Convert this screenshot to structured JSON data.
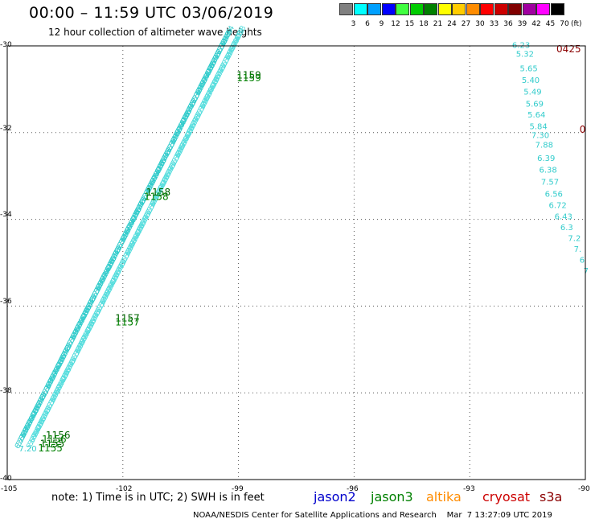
{
  "header": {
    "title": "00:00 – 11:59 UTC 03/06/2019",
    "subtitle": "12 hour collection of altimeter wave heights"
  },
  "legend_scale": {
    "unit": "(ft)",
    "items": [
      {
        "label": "3",
        "color": "#808080"
      },
      {
        "label": "6",
        "color": "#00ffff"
      },
      {
        "label": "9",
        "color": "#00a0ff"
      },
      {
        "label": "12",
        "color": "#0000ff"
      },
      {
        "label": "15",
        "color": "#40ff40"
      },
      {
        "label": "18",
        "color": "#00cc00"
      },
      {
        "label": "21",
        "color": "#008000"
      },
      {
        "label": "24",
        "color": "#ffff00"
      },
      {
        "label": "27",
        "color": "#ffcc00"
      },
      {
        "label": "30",
        "color": "#ff8c00"
      },
      {
        "label": "33",
        "color": "#ff0000"
      },
      {
        "label": "36",
        "color": "#cc0000"
      },
      {
        "label": "39",
        "color": "#800000"
      },
      {
        "label": "42",
        "color": "#a000a0"
      },
      {
        "label": "45",
        "color": "#ff00ff"
      },
      {
        "label": "70",
        "color": "#000000"
      }
    ]
  },
  "axes": {
    "lat_labels": [
      "-30",
      "-32",
      "-34",
      "-36",
      "-38",
      "-40"
    ],
    "lon_labels": [
      "-105",
      "-102",
      "-99",
      "-96",
      "-93",
      "-90"
    ]
  },
  "map": {
    "tracks": [
      {
        "color": "#33cccc",
        "lon_start": -104.7,
        "lat_start": -39.3,
        "lon_end": -99.3,
        "lat_end": -29.9
      },
      {
        "color": "#55dddd",
        "lon_start": -104.4,
        "lat_start": -39.3,
        "lon_end": -99.0,
        "lat_end": -29.9
      }
    ],
    "time_labels": [
      {
        "text": "1159",
        "lon": -99.05,
        "lat": -30.75,
        "color": "#006400"
      },
      {
        "text": "1159",
        "lon": -99.05,
        "lat": -30.82,
        "color": "#008000"
      },
      {
        "text": "1158",
        "lon": -101.4,
        "lat": -33.45,
        "color": "#006400"
      },
      {
        "text": "1158",
        "lon": -101.45,
        "lat": -33.55,
        "color": "#008000"
      },
      {
        "text": "1157",
        "lon": -102.2,
        "lat": -36.35,
        "color": "#006400"
      },
      {
        "text": "1157",
        "lon": -102.2,
        "lat": -36.45,
        "color": "#008000"
      },
      {
        "text": "1156",
        "lon": -104.0,
        "lat": -39.05,
        "color": "#006400"
      },
      {
        "text": "1156",
        "lon": -104.1,
        "lat": -39.15,
        "color": "#008000"
      },
      {
        "text": "1155",
        "lon": -104.15,
        "lat": -39.25,
        "color": "#006400"
      },
      {
        "text": "1155",
        "lon": -104.2,
        "lat": -39.35,
        "color": "#008000"
      }
    ],
    "track_value_samples": [
      "6.23",
      "5.32",
      "5.65",
      "5.40",
      "5.49",
      "5.69",
      "5.64",
      "5.84",
      "7.30",
      "7.88",
      "6.39",
      "6.38",
      "7.57",
      "6.56",
      "6.72",
      "6.43",
      "6.3",
      "7.2"
    ],
    "right_track": [
      {
        "text": "6.23",
        "lon": -91.9,
        "lat": -30.05
      },
      {
        "text": "5.32",
        "lon": -91.8,
        "lat": -30.25
      },
      {
        "text": "5.65",
        "lon": -91.7,
        "lat": -30.58
      },
      {
        "text": "5.40",
        "lon": -91.65,
        "lat": -30.85
      },
      {
        "text": "5.49",
        "lon": -91.6,
        "lat": -31.12
      },
      {
        "text": "5.69",
        "lon": -91.55,
        "lat": -31.4
      },
      {
        "text": "5.64",
        "lon": -91.5,
        "lat": -31.65
      },
      {
        "text": "5.84",
        "lon": -91.45,
        "lat": -31.92
      },
      {
        "text": "7.30",
        "lon": -91.4,
        "lat": -32.12
      },
      {
        "text": "7.88",
        "lon": -91.3,
        "lat": -32.35
      },
      {
        "text": "6.39",
        "lon": -91.25,
        "lat": -32.65
      },
      {
        "text": "6.38",
        "lon": -91.2,
        "lat": -32.92
      },
      {
        "text": "7.57",
        "lon": -91.15,
        "lat": -33.2
      },
      {
        "text": "6.56",
        "lon": -91.05,
        "lat": -33.48
      },
      {
        "text": "6.72",
        "lon": -90.95,
        "lat": -33.74
      },
      {
        "text": "6.43",
        "lon": -90.8,
        "lat": -34.0
      },
      {
        "text": "6.3",
        "lon": -90.65,
        "lat": -34.25
      },
      {
        "text": "7.2",
        "lon": -90.45,
        "lat": -34.5
      },
      {
        "text": "7.",
        "lon": -90.3,
        "lat": -34.75
      },
      {
        "text": "6",
        "lon": -90.15,
        "lat": -35.0
      },
      {
        "text": "7",
        "lon": -90.05,
        "lat": -35.25
      }
    ],
    "right_time_labels": [
      {
        "text": "0425",
        "lon": -90.75,
        "lat": -30.15,
        "color": "#8b0000"
      },
      {
        "text": "0",
        "lon": -90.15,
        "lat": -32.0,
        "color": "#8b0000"
      }
    ],
    "lower_left_values": [
      {
        "text": "7.20",
        "lon": -104.7,
        "lat": -39.35
      }
    ]
  },
  "notes": {
    "text": "note:  1) Time is in UTC;  2) SWH is in feet"
  },
  "satellites": [
    {
      "label": "jason2",
      "color": "#0000cc"
    },
    {
      "label": "jason3",
      "color": "#008000"
    },
    {
      "label": "altika",
      "color": "#ff8c00"
    },
    {
      "label": "cryosat",
      "color": "#cc0000"
    },
    {
      "label": "s3a",
      "color": "#8b0000"
    }
  ],
  "footer": {
    "center": "NOAA/NESDIS Center for Satellite Applications and Research",
    "timestamp": "Mar  7 13:27:09 UTC 2019"
  }
}
